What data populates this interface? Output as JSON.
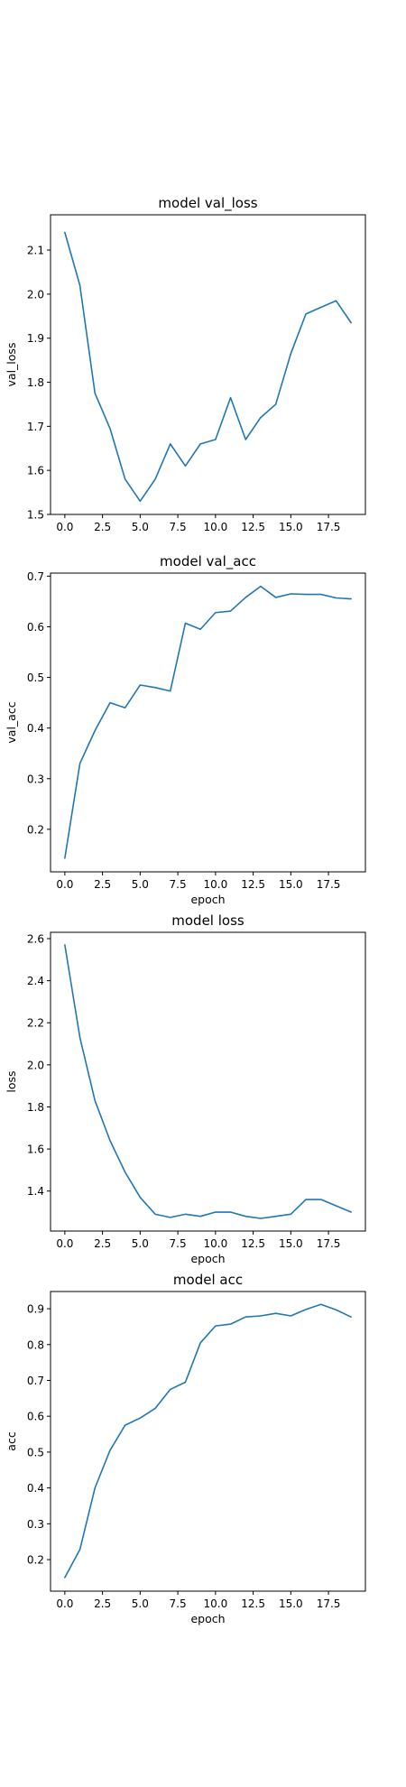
{
  "chart_data": [
    {
      "type": "line",
      "title": "model val_loss",
      "xlabel": "",
      "ylabel": "val_loss",
      "xlim": [
        -0.95,
        19.95
      ],
      "ylim": [
        1.5,
        2.18
      ],
      "xticks": [
        0.0,
        2.5,
        5.0,
        7.5,
        10.0,
        12.5,
        15.0,
        17.5
      ],
      "xticklabels": [
        "0.0",
        "2.5",
        "5.0",
        "7.5",
        "10.0",
        "12.5",
        "15.0",
        "17.5"
      ],
      "yticks": [
        1.5,
        1.6,
        1.7,
        1.8,
        1.9,
        2.0,
        2.1
      ],
      "yticklabels": [
        "1.5",
        "1.6",
        "1.7",
        "1.8",
        "1.9",
        "2.0",
        "2.1"
      ],
      "grid": false,
      "color": "#1f77b4",
      "x": [
        0,
        1,
        2,
        3,
        4,
        5,
        6,
        7,
        8,
        9,
        10,
        11,
        12,
        13,
        14,
        15,
        16,
        17,
        18,
        19
      ],
      "y": [
        2.14,
        2.02,
        1.775,
        1.695,
        1.58,
        1.53,
        1.58,
        1.66,
        1.61,
        1.66,
        1.67,
        1.765,
        1.67,
        1.72,
        1.75,
        1.865,
        1.955,
        1.97,
        1.985,
        1.935
      ]
    },
    {
      "type": "line",
      "title": "model val_acc",
      "xlabel": "epoch",
      "ylabel": "val_acc",
      "xlim": [
        -0.95,
        19.95
      ],
      "ylim": [
        0.116,
        0.706
      ],
      "xticks": [
        0.0,
        2.5,
        5.0,
        7.5,
        10.0,
        12.5,
        15.0,
        17.5
      ],
      "xticklabels": [
        "0.0",
        "2.5",
        "5.0",
        "7.5",
        "10.0",
        "12.5",
        "15.0",
        "17.5"
      ],
      "yticks": [
        0.2,
        0.3,
        0.4,
        0.5,
        0.6,
        0.7
      ],
      "yticklabels": [
        "0.2",
        "0.3",
        "0.4",
        "0.5",
        "0.6",
        "0.7"
      ],
      "grid": false,
      "color": "#1f77b4",
      "x": [
        0,
        1,
        2,
        3,
        4,
        5,
        6,
        7,
        8,
        9,
        10,
        11,
        12,
        13,
        14,
        15,
        16,
        17,
        18,
        19
      ],
      "y": [
        0.143,
        0.33,
        0.395,
        0.45,
        0.44,
        0.485,
        0.48,
        0.473,
        0.607,
        0.595,
        0.628,
        0.631,
        0.658,
        0.68,
        0.658,
        0.665,
        0.664,
        0.664,
        0.657,
        0.655
      ]
    },
    {
      "type": "line",
      "title": "model loss",
      "xlabel": "epoch",
      "ylabel": "loss",
      "xlim": [
        -0.95,
        19.95
      ],
      "ylim": [
        1.21,
        2.63
      ],
      "xticks": [
        0.0,
        2.5,
        5.0,
        7.5,
        10.0,
        12.5,
        15.0,
        17.5
      ],
      "xticklabels": [
        "0.0",
        "2.5",
        "5.0",
        "7.5",
        "10.0",
        "12.5",
        "15.0",
        "17.5"
      ],
      "yticks": [
        1.4,
        1.6,
        1.8,
        2.0,
        2.2,
        2.4,
        2.6
      ],
      "yticklabels": [
        "1.4",
        "1.6",
        "1.8",
        "2.0",
        "2.2",
        "2.4",
        "2.6"
      ],
      "grid": false,
      "color": "#1f77b4",
      "x": [
        0,
        1,
        2,
        3,
        4,
        5,
        6,
        7,
        8,
        9,
        10,
        11,
        12,
        13,
        14,
        15,
        16,
        17,
        18,
        19
      ],
      "y": [
        2.57,
        2.13,
        1.83,
        1.64,
        1.49,
        1.37,
        1.29,
        1.275,
        1.29,
        1.28,
        1.3,
        1.3,
        1.28,
        1.27,
        1.28,
        1.29,
        1.36,
        1.36,
        1.33,
        1.3
      ]
    },
    {
      "type": "line",
      "title": "model acc",
      "xlabel": "epoch",
      "ylabel": "acc",
      "xlim": [
        -0.95,
        19.95
      ],
      "ylim": [
        0.112,
        0.948
      ],
      "xticks": [
        0.0,
        2.5,
        5.0,
        7.5,
        10.0,
        12.5,
        15.0,
        17.5
      ],
      "xticklabels": [
        "0.0",
        "2.5",
        "5.0",
        "7.5",
        "10.0",
        "12.5",
        "15.0",
        "17.5"
      ],
      "yticks": [
        0.2,
        0.3,
        0.4,
        0.5,
        0.6,
        0.7,
        0.8,
        0.9
      ],
      "yticklabels": [
        "0.2",
        "0.3",
        "0.4",
        "0.5",
        "0.6",
        "0.7",
        "0.8",
        "0.9"
      ],
      "grid": false,
      "color": "#1f77b4",
      "x": [
        0,
        1,
        2,
        3,
        4,
        5,
        6,
        7,
        8,
        9,
        10,
        11,
        12,
        13,
        14,
        15,
        16,
        17,
        18,
        19
      ],
      "y": [
        0.15,
        0.228,
        0.4,
        0.505,
        0.575,
        0.595,
        0.622,
        0.675,
        0.695,
        0.805,
        0.852,
        0.857,
        0.877,
        0.88,
        0.887,
        0.88,
        0.898,
        0.912,
        0.897,
        0.877
      ]
    }
  ]
}
